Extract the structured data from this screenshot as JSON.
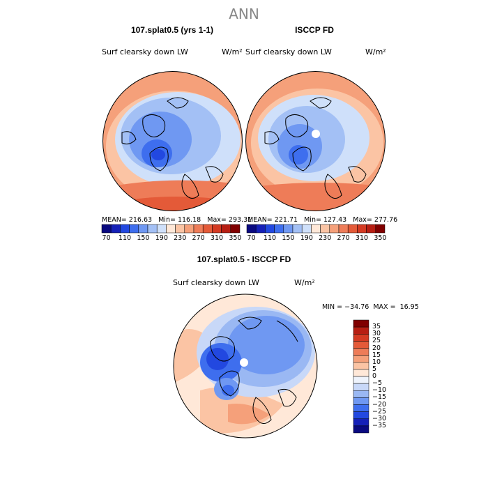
{
  "page": {
    "season": "ANN"
  },
  "panels": [
    {
      "title": "107.splat0.5 (yrs 1-1)",
      "variable": "Surf clearsky down LW",
      "units": "W/m²",
      "stats": {
        "mean_label": "MEAN=",
        "mean": "216.63",
        "min_label": "Min=",
        "min": "116.18",
        "max_label": "Max=",
        "max": "293.31"
      },
      "colorbar": {
        "levels": [
          70,
          110,
          150,
          190,
          230,
          270,
          310,
          350
        ],
        "tick_labels": [
          "70",
          "110",
          "150",
          "190",
          "230",
          "270",
          "310",
          "350"
        ],
        "colors": [
          "#0a0a80",
          "#1520b8",
          "#2248e0",
          "#3e6eee",
          "#6f98f2",
          "#a3c0f5",
          "#cfe0fa",
          "#ffe8d8",
          "#fbc4a4",
          "#f5a07a",
          "#ee7c58",
          "#e45a38",
          "#d43a22",
          "#b71e12",
          "#800000"
        ]
      }
    },
    {
      "title": "ISCCP FD",
      "variable": "Surf clearsky down LW",
      "units": "W/m²",
      "stats": {
        "mean_label": "MEAN=",
        "mean": "221.71",
        "min_label": "Min=",
        "min": "127.43",
        "max_label": "Max=",
        "max": "277.76"
      },
      "colorbar": {
        "levels": [
          70,
          110,
          150,
          190,
          230,
          270,
          310,
          350
        ],
        "tick_labels": [
          "70",
          "110",
          "150",
          "190",
          "230",
          "270",
          "310",
          "350"
        ],
        "colors": [
          "#0a0a80",
          "#1520b8",
          "#2248e0",
          "#3e6eee",
          "#6f98f2",
          "#a3c0f5",
          "#cfe0fa",
          "#ffe8d8",
          "#fbc4a4",
          "#f5a07a",
          "#ee7c58",
          "#e45a38",
          "#d43a22",
          "#b71e12",
          "#800000"
        ]
      }
    },
    {
      "title": "107.splat0.5 - ISCCP FD",
      "variable": "Surf clearsky down LW",
      "units": "W/m²",
      "stats": {
        "min_label": "MIN =",
        "min": "−34.76",
        "max_label": "MAX =",
        "max": "16.95"
      },
      "colorbar": {
        "levels": [
          35,
          30,
          25,
          20,
          15,
          10,
          5,
          0,
          -5,
          -10,
          -15,
          -20,
          -25,
          -30,
          -35
        ],
        "tick_labels": [
          "35",
          "30",
          "25",
          "20",
          "15",
          "10",
          "5",
          "0",
          "−5",
          "−10",
          "−15",
          "−20",
          "−25",
          "−30",
          "−35"
        ],
        "colors": [
          "#800000",
          "#b71e12",
          "#d43a22",
          "#e45a38",
          "#ee7c58",
          "#f5a07a",
          "#fbc4a4",
          "#ffe8d8",
          "#eef3fc",
          "#c8d8f8",
          "#9ab8f3",
          "#6f98f2",
          "#3e6eee",
          "#2248e0",
          "#1520b8",
          "#0a0a80"
        ]
      }
    }
  ],
  "chart_data": [
    {
      "type": "heatmap",
      "projection": "north polar stereographic",
      "title": "107.splat0.5 (yrs 1-1)",
      "variable": "Surf clearsky down LW",
      "units": "W/m²",
      "mean": 216.63,
      "min": 116.18,
      "max": 293.31,
      "contour_levels": [
        70,
        110,
        150,
        190,
        230,
        270,
        310,
        350
      ]
    },
    {
      "type": "heatmap",
      "projection": "north polar stereographic",
      "title": "ISCCP FD",
      "variable": "Surf clearsky down LW",
      "units": "W/m²",
      "mean": 221.71,
      "min": 127.43,
      "max": 277.76,
      "contour_levels": [
        70,
        110,
        150,
        190,
        230,
        270,
        310,
        350
      ]
    },
    {
      "type": "heatmap",
      "projection": "north polar stereographic",
      "title": "107.splat0.5 - ISCCP FD",
      "variable": "Surf clearsky down LW",
      "units": "W/m²",
      "min": -34.76,
      "max": 16.95,
      "contour_levels": [
        -35,
        -30,
        -25,
        -20,
        -15,
        -10,
        -5,
        0,
        5,
        10,
        15,
        20,
        25,
        30,
        35
      ]
    }
  ]
}
